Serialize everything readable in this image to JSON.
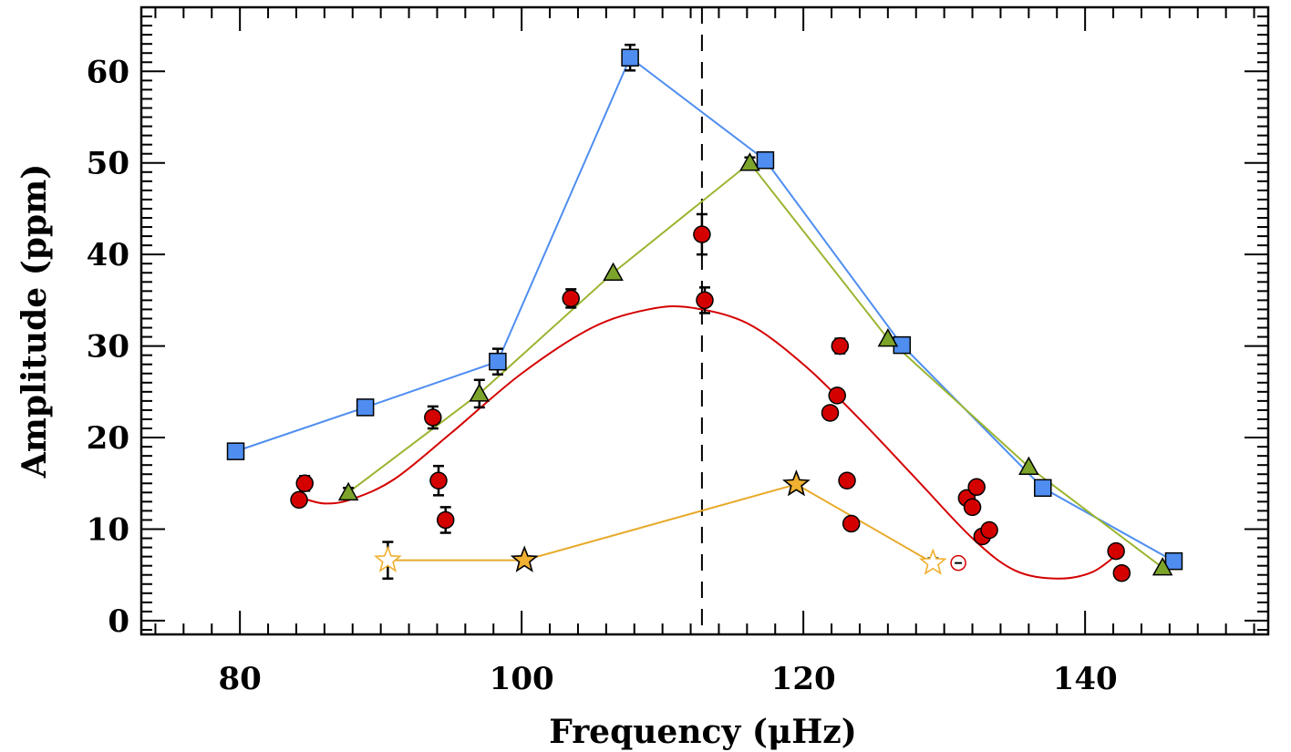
{
  "chart_data": {
    "type": "scatter",
    "title": "",
    "xlabel": "Frequency (μHz)",
    "ylabel": "Amplitude (ppm)",
    "xlim": [
      73,
      153
    ],
    "ylim": [
      -1.5,
      67
    ],
    "x_ticks": [
      80,
      100,
      120,
      140
    ],
    "y_ticks": [
      0,
      10,
      20,
      30,
      40,
      50,
      60
    ],
    "grid": false,
    "numax_line": {
      "x": 112.8,
      "style": "dashed",
      "color": "#000000"
    },
    "series": [
      {
        "name": "squares",
        "marker": "square",
        "color": "#4f8ef0",
        "connected": true,
        "points": [
          {
            "x": 79.7,
            "y": 18.5,
            "err": 0.0
          },
          {
            "x": 88.9,
            "y": 23.3,
            "err": 0.0
          },
          {
            "x": 98.3,
            "y": 28.3,
            "err": 1.4
          },
          {
            "x": 107.7,
            "y": 61.5,
            "err": 1.4
          },
          {
            "x": 117.3,
            "y": 50.3,
            "err": 0.6
          },
          {
            "x": 127.0,
            "y": 30.1,
            "err": 0.0
          },
          {
            "x": 137.0,
            "y": 14.5,
            "err": 0.0
          },
          {
            "x": 146.3,
            "y": 6.5,
            "err": 0.0
          }
        ]
      },
      {
        "name": "triangles",
        "marker": "triangle",
        "color": "#7da42a",
        "line_color": "#9ab530",
        "connected": true,
        "points": [
          {
            "x": 87.7,
            "y": 14.0,
            "err": 0.5
          },
          {
            "x": 97.0,
            "y": 24.8,
            "err": 1.5
          },
          {
            "x": 106.5,
            "y": 38.0,
            "err": 0.0
          },
          {
            "x": 116.2,
            "y": 50.0,
            "err": 0.6
          },
          {
            "x": 126.0,
            "y": 30.8,
            "err": 0.0
          },
          {
            "x": 136.0,
            "y": 16.8,
            "err": 0.0
          },
          {
            "x": 145.5,
            "y": 5.8,
            "err": 0.0
          }
        ]
      },
      {
        "name": "circles",
        "marker": "circle",
        "color": "#d40000",
        "connected": false,
        "points": [
          {
            "x": 84.2,
            "y": 13.2,
            "err": 0.0
          },
          {
            "x": 84.6,
            "y": 15.0,
            "err": 0.8
          },
          {
            "x": 93.7,
            "y": 22.2,
            "err": 1.2
          },
          {
            "x": 94.1,
            "y": 15.3,
            "err": 1.6
          },
          {
            "x": 94.6,
            "y": 11.0,
            "err": 1.4
          },
          {
            "x": 103.5,
            "y": 35.2,
            "err": 1.0
          },
          {
            "x": 112.8,
            "y": 42.2,
            "err": 2.2
          },
          {
            "x": 113.0,
            "y": 35.0,
            "err": 1.4
          },
          {
            "x": 121.9,
            "y": 22.7,
            "err": 0.5
          },
          {
            "x": 122.4,
            "y": 24.6,
            "err": 0.0
          },
          {
            "x": 122.6,
            "y": 30.0,
            "err": 0.8
          },
          {
            "x": 123.1,
            "y": 15.3,
            "err": 0.0
          },
          {
            "x": 123.4,
            "y": 10.6,
            "err": 0.0
          },
          {
            "x": 131.6,
            "y": 13.4,
            "err": 0.0
          },
          {
            "x": 132.0,
            "y": 12.4,
            "err": 0.0
          },
          {
            "x": 132.3,
            "y": 14.6,
            "err": 0.0
          },
          {
            "x": 132.7,
            "y": 9.2,
            "err": 0.0
          },
          {
            "x": 133.2,
            "y": 9.9,
            "err": 0.0
          },
          {
            "x": 142.2,
            "y": 7.6,
            "err": 0.0
          },
          {
            "x": 142.6,
            "y": 5.2,
            "err": 0.0
          }
        ]
      },
      {
        "name": "red-open-circle",
        "marker": "open-circle",
        "color": "#d40000",
        "connected": false,
        "points": [
          {
            "x": 131.0,
            "y": 6.3,
            "err": 0.0
          }
        ]
      },
      {
        "name": "stars",
        "marker": "star",
        "color": "#f0b030",
        "line_color": "#e8aa2a",
        "connected": true,
        "points": [
          {
            "x": 90.5,
            "y": 6.6,
            "err": 2.0,
            "filled": false
          },
          {
            "x": 100.2,
            "y": 6.6,
            "err": 0.0,
            "filled": true
          },
          {
            "x": 119.5,
            "y": 14.9,
            "err": 0.0,
            "filled": true
          },
          {
            "x": 129.2,
            "y": 6.3,
            "err": 0.5,
            "filled": false
          }
        ]
      },
      {
        "name": "gaussian-fit",
        "marker": "none",
        "color": "#d40000",
        "curve": true,
        "points": [
          {
            "x": 84.2,
            "y": 13.5
          },
          {
            "x": 86.0,
            "y": 12.8
          },
          {
            "x": 88.0,
            "y": 13.3
          },
          {
            "x": 91.0,
            "y": 15.5
          },
          {
            "x": 95.0,
            "y": 20.5
          },
          {
            "x": 100.0,
            "y": 27.0
          },
          {
            "x": 105.0,
            "y": 32.0
          },
          {
            "x": 109.0,
            "y": 34.0
          },
          {
            "x": 112.0,
            "y": 34.2
          },
          {
            "x": 116.0,
            "y": 32.5
          },
          {
            "x": 120.0,
            "y": 28.0
          },
          {
            "x": 124.0,
            "y": 22.0
          },
          {
            "x": 128.0,
            "y": 15.5
          },
          {
            "x": 132.0,
            "y": 9.0
          },
          {
            "x": 135.0,
            "y": 5.5
          },
          {
            "x": 138.0,
            "y": 4.6
          },
          {
            "x": 140.5,
            "y": 5.3
          },
          {
            "x": 142.4,
            "y": 7.4
          }
        ]
      }
    ]
  }
}
